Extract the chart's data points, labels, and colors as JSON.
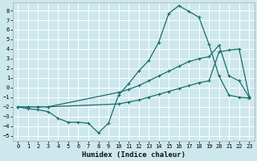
{
  "xlabel": "Humidex (Indice chaleur)",
  "bg_color": "#cde8ec",
  "grid_color": "#ffffff",
  "line_color": "#1a6e6a",
  "xlim": [
    -0.5,
    23.5
  ],
  "ylim": [
    -5.5,
    8.8
  ],
  "xticks": [
    0,
    1,
    2,
    3,
    4,
    5,
    6,
    7,
    8,
    9,
    10,
    11,
    12,
    13,
    14,
    15,
    16,
    17,
    18,
    19,
    20,
    21,
    22,
    23
  ],
  "yticks": [
    -5,
    -4,
    -3,
    -2,
    -1,
    0,
    1,
    2,
    3,
    4,
    5,
    6,
    7,
    8
  ],
  "line1_x": [
    0,
    1,
    2,
    3,
    4,
    5,
    6,
    7,
    8,
    9,
    10,
    11,
    12,
    13,
    14,
    15,
    16,
    17,
    18,
    19,
    20,
    21,
    22,
    23
  ],
  "line1_y": [
    -2.0,
    -2.2,
    -2.3,
    -2.5,
    -3.2,
    -3.6,
    -3.6,
    -3.7,
    -4.7,
    -3.7,
    -0.8,
    0.4,
    1.7,
    2.8,
    4.7,
    7.7,
    8.5,
    7.9,
    7.3,
    4.5,
    1.2,
    -0.8,
    -1.0,
    -1.1
  ],
  "line2_x": [
    0,
    1,
    2,
    3,
    10,
    11,
    12,
    13,
    14,
    15,
    16,
    17,
    18,
    19,
    20,
    21,
    22,
    23
  ],
  "line2_y": [
    -2.0,
    -2.0,
    -2.0,
    -2.0,
    -0.5,
    -0.2,
    0.2,
    0.7,
    1.2,
    1.7,
    2.2,
    2.7,
    3.0,
    3.2,
    4.4,
    1.2,
    0.7,
    -1.0
  ],
  "line3_x": [
    0,
    1,
    2,
    3,
    10,
    11,
    12,
    13,
    14,
    15,
    16,
    17,
    18,
    19,
    20,
    21,
    22,
    23
  ],
  "line3_y": [
    -2.0,
    -2.0,
    -2.0,
    -2.0,
    -1.7,
    -1.5,
    -1.3,
    -1.0,
    -0.7,
    -0.4,
    -0.1,
    0.2,
    0.5,
    0.7,
    3.7,
    3.9,
    4.0,
    -0.9
  ]
}
